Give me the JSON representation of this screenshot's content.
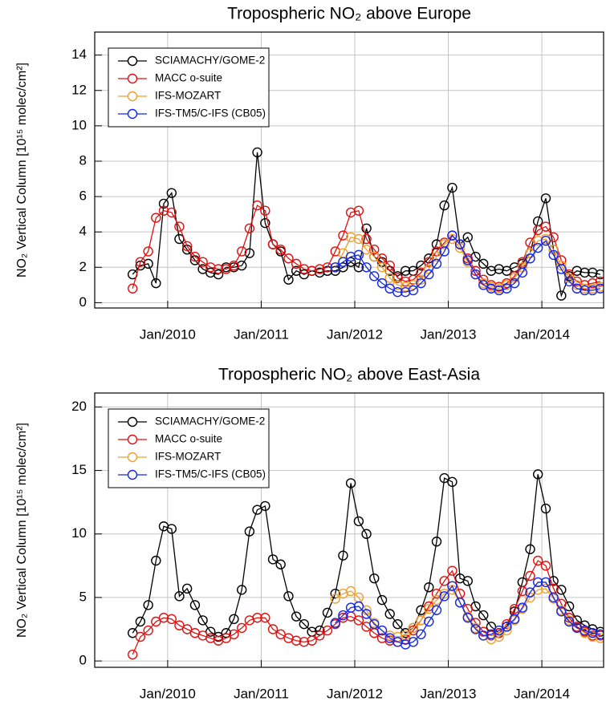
{
  "chart_data": [
    {
      "type": "line",
      "title": "Tropospheric NO₂ above Europe",
      "y_label": "NO₂ Vertical Column [10¹⁵ molec/cm²]",
      "x": [
        2009.625,
        2009.708,
        2009.792,
        2009.875,
        2009.958,
        2010.042,
        2010.125,
        2010.208,
        2010.292,
        2010.375,
        2010.458,
        2010.542,
        2010.625,
        2010.708,
        2010.792,
        2010.875,
        2010.958,
        2011.042,
        2011.125,
        2011.208,
        2011.292,
        2011.375,
        2011.458,
        2011.542,
        2011.625,
        2011.708,
        2011.792,
        2011.875,
        2011.958,
        2012.042,
        2012.125,
        2012.208,
        2012.292,
        2012.375,
        2012.458,
        2012.542,
        2012.625,
        2012.708,
        2012.792,
        2012.875,
        2012.958,
        2013.042,
        2013.125,
        2013.208,
        2013.292,
        2013.375,
        2013.458,
        2013.542,
        2013.625,
        2013.708,
        2013.792,
        2013.875,
        2013.958,
        2014.042,
        2014.125,
        2014.208,
        2014.292,
        2014.375,
        2014.458,
        2014.542,
        2014.625
      ],
      "xlim": [
        2009.22,
        2014.66
      ],
      "xticks": [
        {
          "value": 2010,
          "label": "Jan/2010"
        },
        {
          "value": 2011,
          "label": "Jan/2011"
        },
        {
          "value": 2012,
          "label": "Jan/2012"
        },
        {
          "value": 2013,
          "label": "Jan/2013"
        },
        {
          "value": 2014,
          "label": "Jan/2014"
        }
      ],
      "ylim": [
        -0.3,
        15.3
      ],
      "yticks": [
        0,
        2,
        4,
        6,
        8,
        10,
        12,
        14
      ],
      "grid": true,
      "legend": "upper left",
      "series": [
        {
          "name": "SCIAMACHY/GOME-2",
          "color": "#000000",
          "values": [
            1.6,
            2.1,
            2.2,
            1.1,
            5.6,
            6.2,
            3.6,
            3.0,
            2.4,
            1.9,
            1.7,
            1.6,
            2.0,
            2.0,
            2.1,
            2.8,
            8.5,
            4.5,
            3.3,
            2.9,
            1.3,
            1.8,
            1.6,
            1.8,
            1.7,
            1.8,
            1.8,
            2.0,
            2.3,
            2.0,
            4.2,
            2.6,
            2.3,
            1.8,
            1.5,
            1.8,
            1.8,
            2.1,
            2.5,
            3.3,
            5.5,
            6.5,
            3.3,
            3.7,
            2.6,
            2.2,
            1.8,
            1.9,
            1.8,
            2.0,
            2.2,
            2.8,
            4.6,
            5.9,
            3.0,
            0.4,
            1.5,
            1.8,
            1.7,
            1.7,
            1.6
          ]
        },
        {
          "name": "MACC o-suite",
          "color": "#e01010",
          "values": [
            0.8,
            2.3,
            2.9,
            4.8,
            5.2,
            5.1,
            4.3,
            3.2,
            2.6,
            2.3,
            2.0,
            1.9,
            1.9,
            2.1,
            2.9,
            4.2,
            5.5,
            5.2,
            3.3,
            3.0,
            2.5,
            2.2,
            1.9,
            1.8,
            1.9,
            2.0,
            2.9,
            3.8,
            5.1,
            5.2,
            3.6,
            3.0,
            2.5,
            2.1,
            1.4,
            1.2,
            1.3,
            1.7,
            2.3,
            2.9,
            3.4,
            3.8,
            3.3,
            2.5,
            1.8,
            1.3,
            1.0,
            0.9,
            1.1,
            1.5,
            2.3,
            3.4,
            4.1,
            4.3,
            3.7,
            2.4,
            1.6,
            1.2,
            1.0,
            1.1,
            1.2
          ]
        },
        {
          "name": "IFS-MOZART",
          "color": "#eea030",
          "values": [
            null,
            null,
            null,
            null,
            null,
            null,
            null,
            null,
            null,
            null,
            null,
            null,
            null,
            null,
            null,
            null,
            null,
            null,
            null,
            null,
            null,
            null,
            null,
            null,
            null,
            null,
            2.0,
            2.8,
            3.7,
            3.6,
            3.0,
            2.6,
            2.0,
            1.4,
            1.0,
            0.9,
            1.0,
            1.3,
            1.9,
            2.6,
            3.3,
            3.6,
            3.1,
            2.3,
            1.6,
            1.1,
            0.9,
            0.8,
            1.0,
            1.4,
            2.0,
            2.8,
            3.5,
            3.6,
            3.0,
            2.1,
            1.4,
            1.0,
            0.8,
            0.8,
            0.9
          ]
        },
        {
          "name": "IFS-TM5/C-IFS (CB05)",
          "color": "#1428e6",
          "values": [
            null,
            null,
            null,
            null,
            null,
            null,
            null,
            null,
            null,
            null,
            null,
            null,
            null,
            null,
            null,
            null,
            null,
            null,
            null,
            null,
            null,
            null,
            null,
            null,
            null,
            null,
            2.0,
            2.3,
            2.6,
            2.7,
            2.0,
            1.5,
            1.1,
            0.8,
            0.6,
            0.6,
            0.7,
            1.1,
            1.6,
            2.2,
            2.9,
            3.8,
            3.3,
            2.4,
            1.6,
            1.0,
            0.8,
            0.7,
            0.8,
            1.1,
            1.7,
            2.5,
            3.1,
            3.5,
            2.7,
            1.9,
            1.2,
            0.8,
            0.7,
            0.7,
            0.8
          ]
        }
      ]
    },
    {
      "type": "line",
      "title": "Tropospheric NO₂ above East-Asia",
      "y_label": "NO₂ Vertical Column [10¹⁵ molec/cm²]",
      "x": [
        2009.625,
        2009.708,
        2009.792,
        2009.875,
        2009.958,
        2010.042,
        2010.125,
        2010.208,
        2010.292,
        2010.375,
        2010.458,
        2010.542,
        2010.625,
        2010.708,
        2010.792,
        2010.875,
        2010.958,
        2011.042,
        2011.125,
        2011.208,
        2011.292,
        2011.375,
        2011.458,
        2011.542,
        2011.625,
        2011.708,
        2011.792,
        2011.875,
        2011.958,
        2012.042,
        2012.125,
        2012.208,
        2012.292,
        2012.375,
        2012.458,
        2012.542,
        2012.625,
        2012.708,
        2012.792,
        2012.875,
        2012.958,
        2013.042,
        2013.125,
        2013.208,
        2013.292,
        2013.375,
        2013.458,
        2013.542,
        2013.625,
        2013.708,
        2013.792,
        2013.875,
        2013.958,
        2014.042,
        2014.125,
        2014.208,
        2014.292,
        2014.375,
        2014.458,
        2014.542,
        2014.625
      ],
      "xlim": [
        2009.22,
        2014.66
      ],
      "xticks": [
        {
          "value": 2010,
          "label": "Jan/2010"
        },
        {
          "value": 2011,
          "label": "Jan/2011"
        },
        {
          "value": 2012,
          "label": "Jan/2012"
        },
        {
          "value": 2013,
          "label": "Jan/2013"
        },
        {
          "value": 2014,
          "label": "Jan/2014"
        }
      ],
      "ylim": [
        -0.5,
        21.1
      ],
      "yticks": [
        0,
        5,
        10,
        15,
        20
      ],
      "grid": true,
      "legend": "upper left",
      "series": [
        {
          "name": "SCIAMACHY/GOME-2",
          "color": "#000000",
          "values": [
            2.2,
            3.1,
            4.4,
            7.9,
            10.6,
            10.4,
            5.1,
            5.7,
            4.4,
            3.2,
            2.3,
            1.9,
            2.2,
            3.3,
            5.6,
            10.2,
            11.9,
            12.2,
            8.0,
            7.6,
            5.1,
            3.5,
            2.9,
            2.3,
            2.4,
            3.8,
            5.3,
            8.3,
            14.0,
            11.0,
            10.0,
            6.5,
            4.8,
            3.7,
            2.9,
            2.2,
            2.6,
            4.0,
            5.8,
            9.4,
            14.4,
            14.1,
            6.5,
            6.3,
            4.3,
            3.6,
            2.7,
            2.2,
            2.7,
            3.9,
            6.2,
            8.8,
            14.7,
            12.0,
            6.3,
            5.6,
            4.3,
            3.2,
            2.8,
            2.5,
            2.3
          ]
        },
        {
          "name": "MACC o-suite",
          "color": "#e01010",
          "values": [
            0.5,
            1.9,
            2.4,
            3.1,
            3.4,
            3.3,
            2.8,
            2.5,
            2.2,
            2.0,
            1.8,
            1.6,
            1.8,
            2.1,
            2.6,
            3.2,
            3.4,
            3.4,
            2.5,
            2.1,
            1.8,
            1.6,
            1.5,
            1.6,
            2.0,
            2.4,
            2.9,
            3.4,
            3.5,
            3.2,
            2.7,
            2.2,
            1.8,
            1.6,
            1.5,
            1.7,
            2.4,
            3.2,
            4.3,
            5.3,
            6.3,
            7.1,
            5.3,
            4.1,
            3.0,
            2.3,
            2.0,
            2.2,
            2.9,
            4.1,
            5.5,
            6.7,
            7.9,
            7.5,
            5.7,
            4.5,
            3.4,
            2.7,
            2.3,
            2.0,
            2.0
          ]
        },
        {
          "name": "IFS-MOZART",
          "color": "#eea030",
          "values": [
            null,
            null,
            null,
            null,
            null,
            null,
            null,
            null,
            null,
            null,
            null,
            null,
            null,
            null,
            null,
            null,
            null,
            null,
            null,
            null,
            null,
            null,
            null,
            null,
            null,
            null,
            4.9,
            5.3,
            5.5,
            5.0,
            4.0,
            3.0,
            2.4,
            2.0,
            1.9,
            2.0,
            2.6,
            3.2,
            4.1,
            4.8,
            5.3,
            5.6,
            4.6,
            3.5,
            2.6,
            2.0,
            1.7,
            1.9,
            2.4,
            3.2,
            4.1,
            5.0,
            5.6,
            5.7,
            4.9,
            4.0,
            3.2,
            2.6,
            2.2,
            1.9,
            1.8
          ]
        },
        {
          "name": "IFS-TM5/C-IFS (CB05)",
          "color": "#1428e6",
          "values": [
            null,
            null,
            null,
            null,
            null,
            null,
            null,
            null,
            null,
            null,
            null,
            null,
            null,
            null,
            null,
            null,
            null,
            null,
            null,
            null,
            null,
            null,
            null,
            null,
            null,
            null,
            3.0,
            3.6,
            4.2,
            4.3,
            3.7,
            2.9,
            2.4,
            1.8,
            1.5,
            1.3,
            1.5,
            2.1,
            3.1,
            4.0,
            5.1,
            5.9,
            4.6,
            3.4,
            2.5,
            2.0,
            2.1,
            2.4,
            2.7,
            3.3,
            4.2,
            5.4,
            6.2,
            6.2,
            5.0,
            3.9,
            3.1,
            2.6,
            2.4,
            2.2,
            2.1
          ]
        }
      ]
    }
  ]
}
